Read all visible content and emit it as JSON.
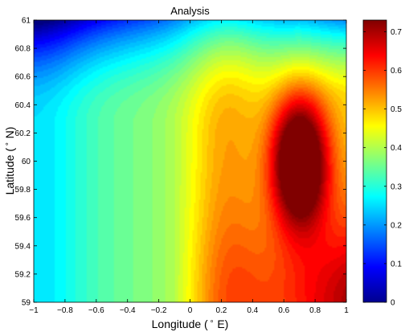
{
  "chart_data": {
    "type": "heatmap",
    "title": "Analysis",
    "xlabel_main": "Longitude (",
    "xlabel_sup": "∘",
    "xlabel_end": "E)",
    "ylabel_main": "Latitude (",
    "ylabel_sup": "∘",
    "ylabel_end": "N)",
    "xlim": [
      -1,
      1
    ],
    "ylim": [
      59,
      61
    ],
    "x_ticks": [
      -1,
      -0.8,
      -0.6,
      -0.4,
      -0.2,
      0,
      0.2,
      0.4,
      0.6,
      0.8,
      1
    ],
    "x_tick_labels": [
      "−1",
      "−0.8",
      "−0.6",
      "−0.4",
      "−0.2",
      "0",
      "0.2",
      "0.4",
      "0.6",
      "0.8",
      "1"
    ],
    "y_ticks": [
      59,
      59.2,
      59.4,
      59.6,
      59.8,
      60,
      60.2,
      60.4,
      60.6,
      60.8,
      61
    ],
    "y_tick_labels": [
      "59",
      "59.2",
      "59.4",
      "59.6",
      "59.8",
      "60",
      "60.2",
      "60.4",
      "60.6",
      "60.8",
      "61"
    ],
    "colorbar": {
      "colormap": "jet",
      "range": [
        0,
        0.73
      ],
      "ticks": [
        0,
        0.1,
        0.2,
        0.3,
        0.4,
        0.5,
        0.6,
        0.7
      ],
      "tick_labels": [
        "0",
        "0.1",
        "0.2",
        "0.3",
        "0.4",
        "0.5",
        "0.6",
        "0.7"
      ]
    },
    "grid": false,
    "peak": {
      "x": 0.7,
      "y": 60.0,
      "value": 0.73
    }
  }
}
